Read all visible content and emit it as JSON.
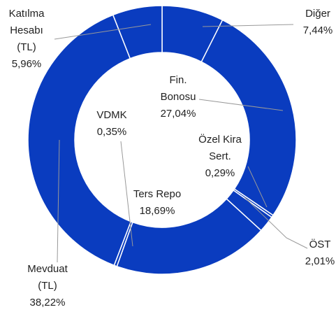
{
  "chart_data": {
    "type": "donut",
    "categories": [
      "Diğer",
      "Fin.\nBonosu",
      "Özel Kira\nSert.",
      "ÖST",
      "Ters Repo",
      "VDMK",
      "Mevduat\n(TL)",
      "Katılma\nHesabı\n(TL)"
    ],
    "values": [
      7.44,
      27.04,
      0.29,
      2.01,
      18.69,
      0.35,
      38.22,
      5.96
    ],
    "value_labels": [
      "7,44%",
      "27,04%",
      "0,29%",
      "2,01%",
      "18,69%",
      "0,35%",
      "38,22%",
      "5,96%"
    ],
    "color": "#0a3cbf"
  }
}
